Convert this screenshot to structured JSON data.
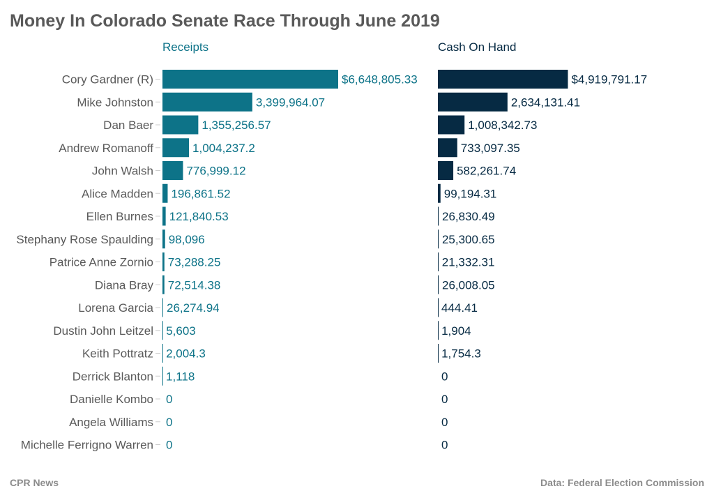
{
  "title": "Money In Colorado Senate Race Through June 2019",
  "footer": {
    "source_left": "CPR News",
    "source_right": "Data: Federal Election Commission"
  },
  "colors": {
    "receipts": "#0d7388",
    "cash_on_hand": "#062a43",
    "label": "#595959"
  },
  "chart_data": {
    "type": "bar",
    "orientation": "horizontal",
    "categories": [
      "Cory Gardner (R)",
      "Mike Johnston",
      "Dan Baer",
      "Andrew Romanoff",
      "John Walsh",
      "Alice Madden",
      "Ellen Burnes",
      "Stephany Rose Spaulding",
      "Patrice Anne Zornio",
      "Diana Bray",
      "Lorena Garcia",
      "Dustin John Leitzel",
      "Keith Pottratz",
      "Derrick Blanton",
      "Danielle Kombo",
      "Angela Williams",
      "Michelle Ferrigno Warren"
    ],
    "series": [
      {
        "name": "Receipts",
        "values": [
          6648805.33,
          3399964.07,
          1355256.57,
          1004237.2,
          776999.12,
          196861.52,
          121840.53,
          98096,
          73288.25,
          72514.38,
          26274.94,
          5603,
          2004.3,
          1118,
          0,
          0,
          0
        ],
        "labels": [
          "$6,648,805.33",
          "3,399,964.07",
          "1,355,256.57",
          "1,004,237.2",
          "776,999.12",
          "196,861.52",
          "121,840.53",
          "98,096",
          "73,288.25",
          "72,514.38",
          "26,274.94",
          "5,603",
          "2,004.3",
          "1,118",
          "0",
          "0",
          "0"
        ]
      },
      {
        "name": "Cash On Hand",
        "values": [
          4919791.17,
          2634131.41,
          1008342.73,
          733097.35,
          582261.74,
          99194.31,
          26830.49,
          25300.65,
          21332.31,
          26008.05,
          444.41,
          1904,
          1754.3,
          0,
          0,
          0,
          0
        ],
        "labels": [
          "$4,919,791.17",
          "2,634,131.41",
          "1,008,342.73",
          "733,097.35",
          "582,261.74",
          "99,194.31",
          "26,830.49",
          "25,300.65",
          "21,332.31",
          "26,008.05",
          "444.41",
          "1,904",
          "1,754.3",
          "0",
          "0",
          "0",
          "0"
        ]
      }
    ],
    "xlim": [
      0,
      6648805.33
    ],
    "grid": false,
    "legend": "panel headers"
  }
}
